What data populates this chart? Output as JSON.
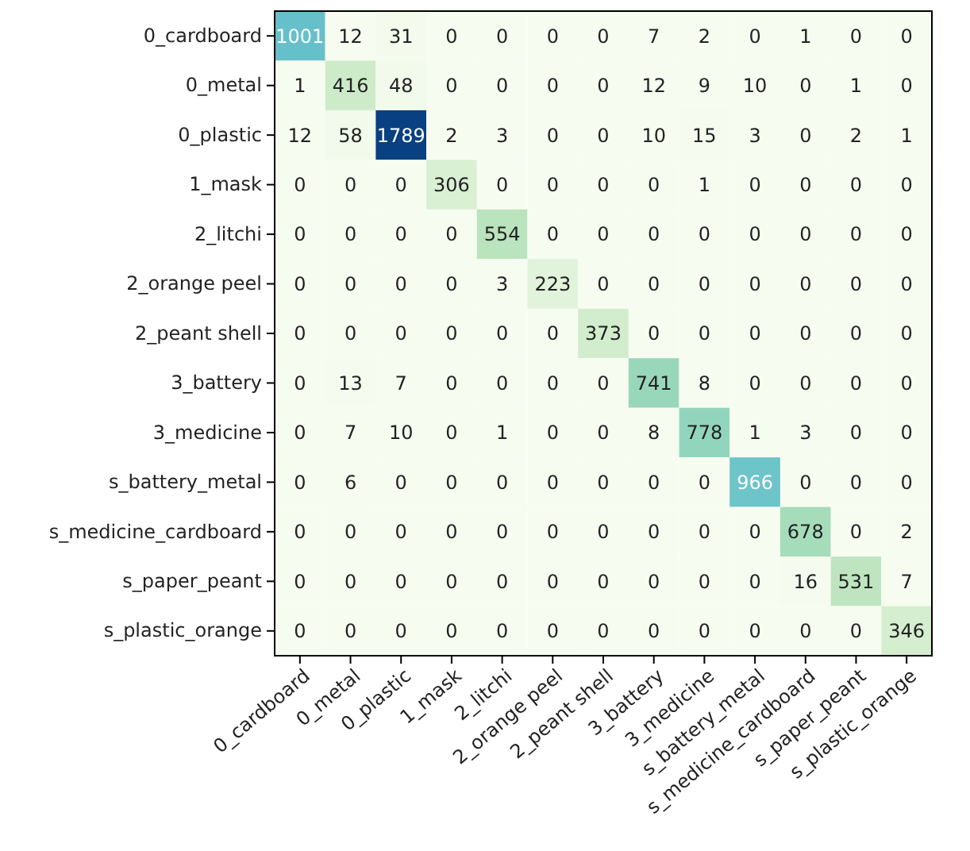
{
  "chart_data": {
    "type": "heatmap",
    "categories": [
      "0_cardboard",
      "0_metal",
      "0_plastic",
      "1_mask",
      "2_litchi",
      "2_orange peel",
      "2_peant shell",
      "3_battery",
      "3_medicine",
      "s_battery_metal",
      "s_medicine_cardboard",
      "s_paper_peant",
      "s_plastic_orange"
    ],
    "y_categories": [
      "0_cardboard",
      "0_metal",
      "0_plastic",
      "1_mask",
      "2_litchi",
      "2_orange peel",
      "2_peant shell",
      "3_battery",
      "3_medicine",
      "s_battery_metal",
      "s_medicine_cardboard",
      "s_paper_peant",
      "s_plastic_orange"
    ],
    "cells": [
      [
        1001,
        12,
        31,
        0,
        0,
        0,
        0,
        7,
        2,
        0,
        1,
        0,
        0
      ],
      [
        1,
        416,
        48,
        0,
        0,
        0,
        0,
        12,
        9,
        10,
        0,
        1,
        0
      ],
      [
        12,
        58,
        1789,
        2,
        3,
        0,
        0,
        10,
        15,
        3,
        0,
        2,
        1
      ],
      [
        0,
        0,
        0,
        306,
        0,
        0,
        0,
        0,
        1,
        0,
        0,
        0,
        0
      ],
      [
        0,
        0,
        0,
        0,
        554,
        0,
        0,
        0,
        0,
        0,
        0,
        0,
        0
      ],
      [
        0,
        0,
        0,
        0,
        3,
        223,
        0,
        0,
        0,
        0,
        0,
        0,
        0
      ],
      [
        0,
        0,
        0,
        0,
        0,
        0,
        373,
        0,
        0,
        0,
        0,
        0,
        0
      ],
      [
        0,
        13,
        7,
        0,
        0,
        0,
        0,
        741,
        8,
        0,
        0,
        0,
        0
      ],
      [
        0,
        7,
        10,
        0,
        1,
        0,
        0,
        8,
        778,
        1,
        3,
        0,
        0
      ],
      [
        0,
        6,
        0,
        0,
        0,
        0,
        0,
        0,
        0,
        966,
        0,
        0,
        0
      ],
      [
        0,
        0,
        0,
        0,
        0,
        0,
        0,
        0,
        0,
        0,
        678,
        0,
        2
      ],
      [
        0,
        0,
        0,
        0,
        0,
        0,
        0,
        0,
        0,
        0,
        16,
        531,
        7
      ],
      [
        0,
        0,
        0,
        0,
        0,
        0,
        0,
        0,
        0,
        0,
        0,
        0,
        346
      ]
    ],
    "data_labels": true
  }
}
